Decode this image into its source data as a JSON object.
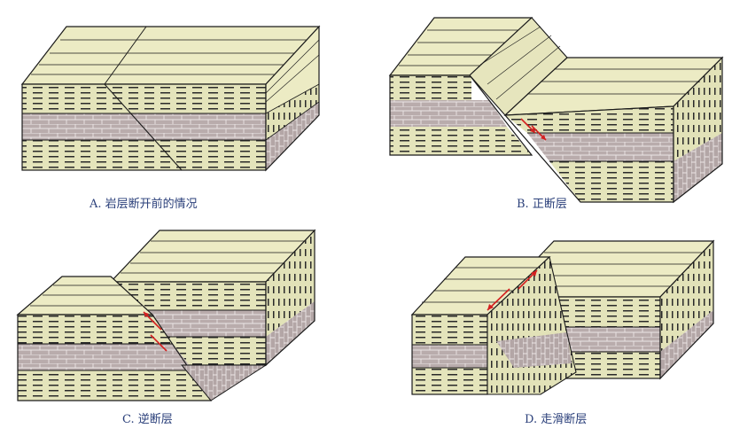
{
  "captions": {
    "a": "A. 岩层断开前的情况",
    "b": "B. 正断层",
    "c": "C. 逆断层",
    "d": "D. 走滑断层"
  },
  "colors": {
    "sandstone": "#ecebc4",
    "shale": "#e4e4bb",
    "limestone": "#b9acac",
    "outline": "#1a1a1a",
    "arrow": "#d42020",
    "caption": "#2a3f7a"
  }
}
